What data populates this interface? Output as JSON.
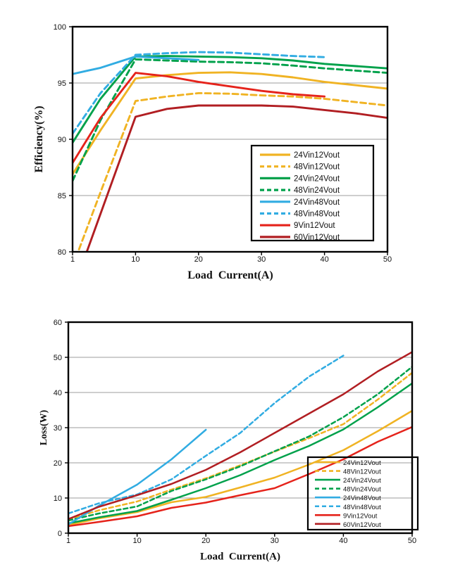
{
  "page": {
    "background": "#ffffff"
  },
  "chart_data": [
    {
      "type": "line",
      "title": "",
      "xlabel": "Load  Current(A)",
      "ylabel": "Efficiency(%)",
      "xlim": [
        1,
        50
      ],
      "ylim": [
        80,
        100
      ],
      "x_ticks": [
        1,
        10,
        20,
        30,
        40,
        50
      ],
      "y_ticks": [
        80,
        85,
        90,
        95,
        100
      ],
      "grid_values": [
        85,
        90,
        95
      ],
      "grid": "horizontal",
      "legend_position": "inside-right-middle",
      "series": [
        {
          "name": "24Vin12Vout",
          "color": "#F0B323",
          "style": "solid",
          "points": [
            [
              1,
              86.9
            ],
            [
              5,
              90.8
            ],
            [
              10,
              95.4
            ],
            [
              15,
              95.7
            ],
            [
              20,
              95.9
            ],
            [
              25,
              95.95
            ],
            [
              30,
              95.8
            ],
            [
              35,
              95.5
            ],
            [
              40,
              95.1
            ],
            [
              45,
              94.8
            ],
            [
              50,
              94.5
            ]
          ]
        },
        {
          "name": "48Vin12Vout",
          "color": "#F0B323",
          "style": "dashed",
          "points": [
            [
              1,
              78.7
            ],
            [
              5,
              85.3
            ],
            [
              10,
              93.4
            ],
            [
              15,
              93.8
            ],
            [
              20,
              94.1
            ],
            [
              25,
              94.05
            ],
            [
              30,
              93.9
            ],
            [
              35,
              93.8
            ],
            [
              40,
              93.6
            ],
            [
              45,
              93.3
            ],
            [
              50,
              93.0
            ]
          ]
        },
        {
          "name": "24Vin24Vout",
          "color": "#00A14B",
          "style": "solid",
          "points": [
            [
              1,
              89.7
            ],
            [
              5,
              93.6
            ],
            [
              10,
              97.35
            ],
            [
              15,
              97.4
            ],
            [
              20,
              97.35
            ],
            [
              25,
              97.3
            ],
            [
              30,
              97.2
            ],
            [
              35,
              97.0
            ],
            [
              40,
              96.7
            ],
            [
              45,
              96.5
            ],
            [
              50,
              96.3
            ]
          ]
        },
        {
          "name": "48Vin24Vout",
          "color": "#00A14B",
          "style": "dashed",
          "points": [
            [
              1,
              86.3
            ],
            [
              5,
              91.7
            ],
            [
              10,
              97.1
            ],
            [
              15,
              97.0
            ],
            [
              20,
              96.9
            ],
            [
              25,
              96.85
            ],
            [
              30,
              96.75
            ],
            [
              35,
              96.55
            ],
            [
              40,
              96.3
            ],
            [
              45,
              96.1
            ],
            [
              50,
              95.9
            ]
          ]
        },
        {
          "name": "24Vin48Vout",
          "color": "#31ACE2",
          "style": "solid",
          "points": [
            [
              1,
              95.8
            ],
            [
              5,
              96.35
            ],
            [
              10,
              97.35
            ],
            [
              15,
              97.2
            ],
            [
              20,
              97.05
            ]
          ]
        },
        {
          "name": "48Vin48Vout",
          "color": "#31ACE2",
          "style": "dashed",
          "points": [
            [
              1,
              90.5
            ],
            [
              5,
              94.1
            ],
            [
              10,
              97.5
            ],
            [
              15,
              97.65
            ],
            [
              20,
              97.75
            ],
            [
              25,
              97.7
            ],
            [
              30,
              97.55
            ],
            [
              35,
              97.4
            ],
            [
              40,
              97.3
            ]
          ]
        },
        {
          "name": "9Vin12Vout",
          "color": "#E5231B",
          "style": "solid",
          "points": [
            [
              1,
              87.9
            ],
            [
              5,
              91.9
            ],
            [
              10,
              95.9
            ],
            [
              15,
              95.6
            ],
            [
              20,
              95.1
            ],
            [
              25,
              94.7
            ],
            [
              30,
              94.3
            ],
            [
              35,
              94.0
            ],
            [
              40,
              93.8
            ]
          ]
        },
        {
          "name": "60Vin12Vout",
          "color": "#B11E22",
          "style": "solid",
          "points": [
            [
              1,
              76.5
            ],
            [
              10,
              92.0
            ],
            [
              15,
              92.7
            ],
            [
              20,
              93.0
            ],
            [
              25,
              93.0
            ],
            [
              30,
              93.0
            ],
            [
              35,
              92.9
            ],
            [
              40,
              92.6
            ],
            [
              45,
              92.3
            ],
            [
              50,
              91.9
            ]
          ]
        }
      ]
    },
    {
      "type": "line",
      "title": "",
      "xlabel": "Load  Current(A)",
      "ylabel": "Loss(W)",
      "xlim": [
        1,
        50
      ],
      "ylim": [
        0,
        60
      ],
      "x_ticks": [
        1,
        10,
        20,
        30,
        40,
        50
      ],
      "y_ticks": [
        0,
        10,
        20,
        30,
        40,
        50,
        60
      ],
      "grid_values": [
        10,
        20,
        30,
        40,
        50
      ],
      "grid": "horizontal",
      "legend_position": "inside-right-bottom",
      "series": [
        {
          "name": "24Vin12Vout",
          "color": "#F0B323",
          "style": "solid",
          "points": [
            [
              1,
              2.3
            ],
            [
              5,
              4.2
            ],
            [
              10,
              6.0
            ],
            [
              15,
              8.8
            ],
            [
              20,
              10.3
            ],
            [
              25,
              13.0
            ],
            [
              30,
              15.8
            ],
            [
              35,
              19.5
            ],
            [
              40,
              23.6
            ],
            [
              45,
              29.0
            ],
            [
              50,
              34.8
            ]
          ]
        },
        {
          "name": "48Vin12Vout",
          "color": "#F0B323",
          "style": "dashed",
          "points": [
            [
              1,
              3.9
            ],
            [
              5,
              6.5
            ],
            [
              10,
              9.0
            ],
            [
              15,
              12.4
            ],
            [
              20,
              15.6
            ],
            [
              25,
              19.3
            ],
            [
              30,
              23.2
            ],
            [
              35,
              27.0
            ],
            [
              40,
              31.0
            ],
            [
              45,
              38.0
            ],
            [
              50,
              45.6
            ]
          ]
        },
        {
          "name": "24Vin24Vout",
          "color": "#00A14B",
          "style": "solid",
          "points": [
            [
              1,
              2.8
            ],
            [
              5,
              4.5
            ],
            [
              10,
              6.3
            ],
            [
              15,
              9.5
            ],
            [
              20,
              12.8
            ],
            [
              25,
              16.5
            ],
            [
              30,
              20.8
            ],
            [
              35,
              24.8
            ],
            [
              40,
              29.5
            ],
            [
              45,
              35.8
            ],
            [
              50,
              42.6
            ]
          ]
        },
        {
          "name": "48Vin24Vout",
          "color": "#00A14B",
          "style": "dashed",
          "points": [
            [
              1,
              3.6
            ],
            [
              5,
              5.6
            ],
            [
              10,
              7.6
            ],
            [
              15,
              12.0
            ],
            [
              20,
              15.3
            ],
            [
              25,
              19.0
            ],
            [
              30,
              23.3
            ],
            [
              35,
              27.5
            ],
            [
              40,
              33.0
            ],
            [
              45,
              39.5
            ],
            [
              50,
              47.3
            ]
          ]
        },
        {
          "name": "24Vin48Vout",
          "color": "#31ACE2",
          "style": "solid",
          "points": [
            [
              1,
              2.5
            ],
            [
              5,
              7.8
            ],
            [
              10,
              13.8
            ],
            [
              15,
              21.0
            ],
            [
              20,
              29.4
            ]
          ]
        },
        {
          "name": "48Vin48Vout",
          "color": "#31ACE2",
          "style": "dashed",
          "points": [
            [
              1,
              5.6
            ],
            [
              5,
              8.5
            ],
            [
              10,
              11.0
            ],
            [
              15,
              15.3
            ],
            [
              20,
              22.0
            ],
            [
              25,
              28.5
            ],
            [
              30,
              37.0
            ],
            [
              35,
              44.5
            ],
            [
              40,
              50.5
            ]
          ]
        },
        {
          "name": "9Vin12Vout",
          "color": "#E5231B",
          "style": "solid",
          "points": [
            [
              1,
              2.0
            ],
            [
              5,
              3.2
            ],
            [
              10,
              4.8
            ],
            [
              15,
              7.2
            ],
            [
              20,
              8.7
            ],
            [
              25,
              10.8
            ],
            [
              30,
              12.8
            ],
            [
              35,
              16.8
            ],
            [
              40,
              21.0
            ],
            [
              45,
              26.0
            ],
            [
              50,
              30.2
            ]
          ]
        },
        {
          "name": "60Vin12Vout",
          "color": "#B11E22",
          "style": "solid",
          "points": [
            [
              1,
              4.0
            ],
            [
              5,
              7.5
            ],
            [
              10,
              10.8
            ],
            [
              15,
              14.0
            ],
            [
              20,
              18.0
            ],
            [
              25,
              23.0
            ],
            [
              30,
              28.5
            ],
            [
              35,
              34.0
            ],
            [
              40,
              39.5
            ],
            [
              45,
              46.0
            ],
            [
              50,
              51.5
            ]
          ]
        }
      ]
    }
  ]
}
